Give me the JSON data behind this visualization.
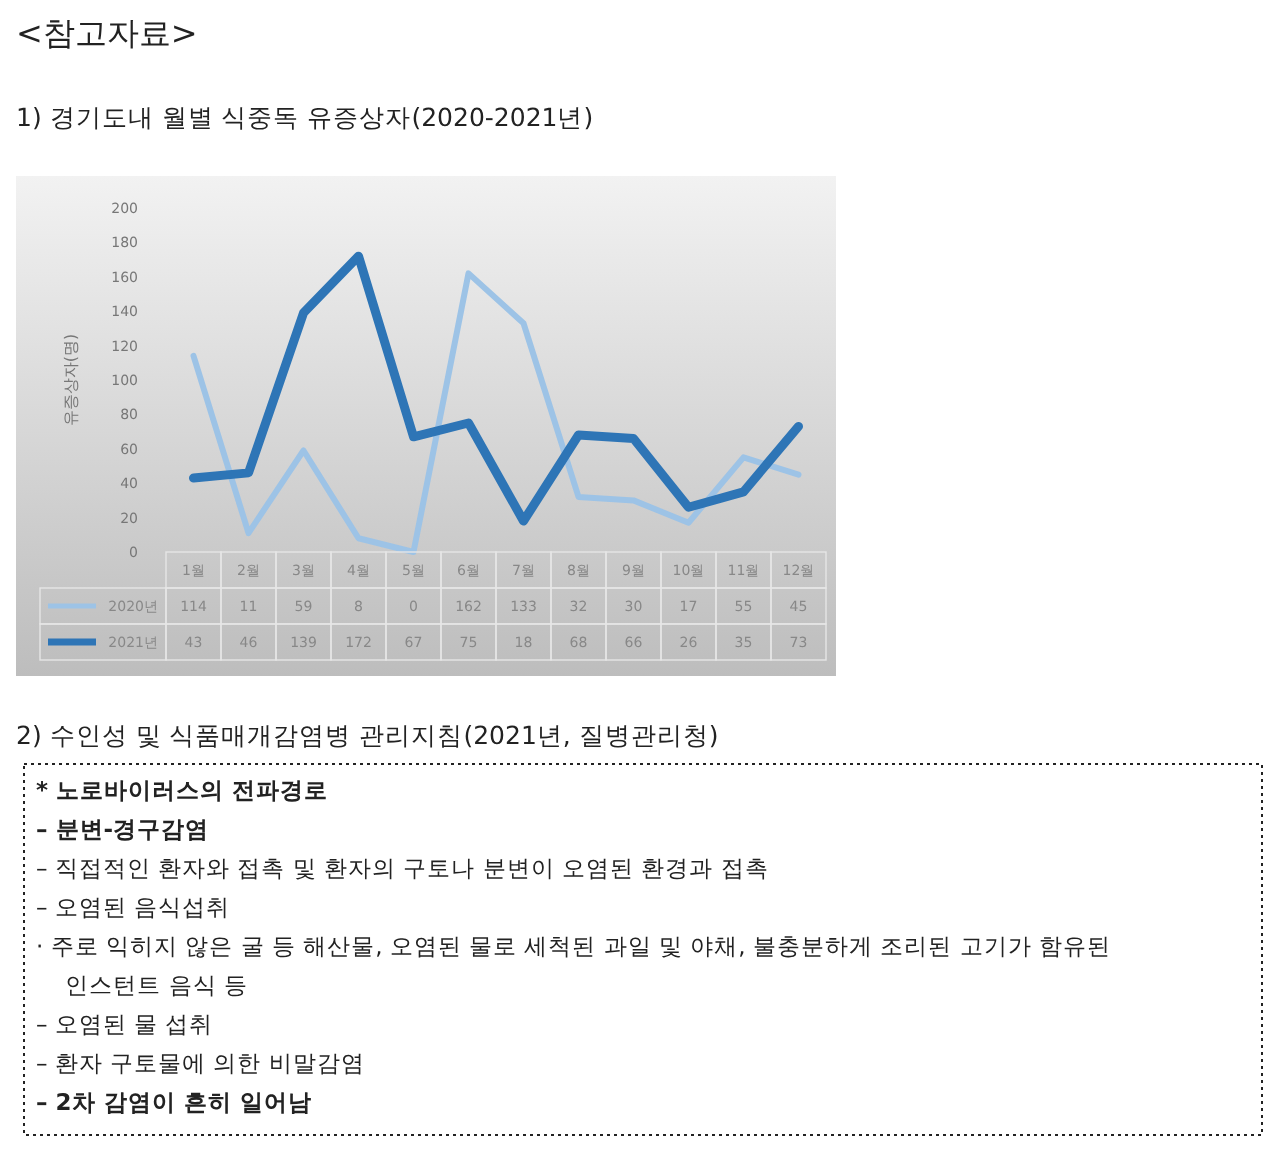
{
  "chart_data": {
    "type": "line",
    "title": "1) 경기도내 월별 식중독 유증상자(2020-2021년)",
    "ylabel": "유증상자(명)",
    "categories": [
      "1월",
      "2월",
      "3월",
      "4월",
      "5월",
      "6월",
      "7월",
      "8월",
      "9월",
      "10월",
      "11월",
      "12월"
    ],
    "series": [
      {
        "name": "2020년",
        "color": "#9dc3e6",
        "values": [
          114,
          11,
          59,
          8,
          0,
          162,
          133,
          32,
          30,
          17,
          55,
          45
        ]
      },
      {
        "name": "2021년",
        "color": "#2e75b6",
        "values": [
          43,
          46,
          139,
          172,
          67,
          75,
          18,
          68,
          66,
          26,
          35,
          73
        ]
      }
    ],
    "ylim": [
      0,
      200
    ],
    "yticks": [
      0,
      20,
      40,
      60,
      80,
      100,
      120,
      140,
      160,
      180,
      200
    ],
    "data_labels": true,
    "legend": "bottom",
    "grid": false,
    "annotations": [
      "<참고자료>",
      "2) 수인성 및 식품매개감염병 관리지침(2021년, 질병관리청)",
      "* 노로바이러스의 전파경로",
      "  – 분변-경구감염",
      "  – 직접적인 환자와 접촉 및 환자의 구토나 분변이 오염된 환경과 접촉",
      "  – 오염된 음식섭취",
      "  · 주로 익히지 않은 굴 등 해산물, 오염된 물로 세척된 과일 및 야채, 불충분하게 조리된 고기가 함유된 인스턴트 음식 등",
      "  – 오염된 물 섭취",
      "  – 환자 구토물에 의한 비말감염",
      "  – 2차 감염이 흔히 일어남"
    ]
  }
}
